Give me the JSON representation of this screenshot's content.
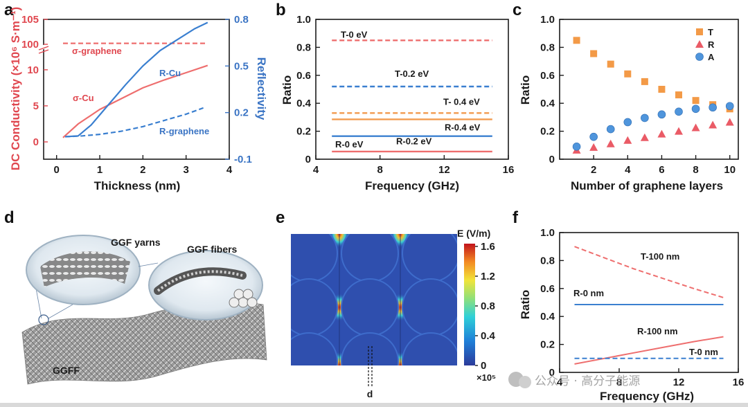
{
  "colors": {
    "red": "#ee6e6e",
    "blue": "#3a7fd0",
    "orange": "#f29a4e",
    "orange_marker": "#f39a47",
    "red_marker": "#ea5b66",
    "blue_marker": "#4f95dc",
    "axis_red": "#e0474f",
    "axis_blue": "#3a74c4"
  },
  "panel_labels": [
    "a",
    "b",
    "c",
    "d",
    "e",
    "f"
  ],
  "chart_data": [
    {
      "panel": "a",
      "type": "line",
      "xlabel": "Thickness (nm)",
      "ylabel_left": "DC Conductivity (×10⁶ S·m⁻¹)",
      "ylabel_right": "Reflectivity",
      "xlim": [
        -0.3,
        4
      ],
      "x_ticks": [
        "0",
        "1",
        "2",
        "3",
        "4"
      ],
      "y_left_ticks": [
        "0",
        "5",
        "10",
        "100",
        "105"
      ],
      "y_right_ticks": [
        "-0.1",
        "0.2",
        "0.5",
        "0.8"
      ],
      "y_right_lim": [
        -0.1,
        0.8
      ],
      "series": [
        {
          "name": "σ-graphene",
          "axis": "left",
          "style": "dashed",
          "color": "#ee6e6e",
          "x": [
            0.15,
            3.5
          ],
          "y_break_value": [
            100.2,
            100.2
          ]
        },
        {
          "name": "σ-Cu",
          "axis": "left",
          "style": "solid",
          "color": "#ee6e6e",
          "x": [
            0.15,
            0.5,
            1.0,
            1.5,
            2.0,
            2.5,
            3.0,
            3.5
          ],
          "y": [
            0.6,
            2.5,
            4.5,
            6.0,
            7.5,
            8.6,
            9.6,
            10.6
          ]
        },
        {
          "name": "R-Cu",
          "axis": "right",
          "style": "solid",
          "color": "#3a7fd0",
          "x": [
            0.2,
            0.5,
            0.8,
            1.2,
            1.6,
            2.0,
            2.4,
            2.8,
            3.2,
            3.5
          ],
          "y": [
            0.045,
            0.05,
            0.12,
            0.25,
            0.38,
            0.5,
            0.6,
            0.67,
            0.74,
            0.78
          ]
        },
        {
          "name": "R-graphene",
          "axis": "right",
          "style": "dashed",
          "color": "#3a7fd0",
          "x": [
            0.2,
            0.6,
            1.0,
            1.5,
            2.0,
            2.5,
            3.0,
            3.4
          ],
          "y": [
            0.045,
            0.05,
            0.06,
            0.08,
            0.11,
            0.15,
            0.19,
            0.23
          ]
        }
      ],
      "annotations": [
        "σ-graphene",
        "σ-Cu",
        "R-Cu",
        "R-graphene"
      ]
    },
    {
      "panel": "b",
      "type": "line",
      "xlabel": "Frequency (GHz)",
      "ylabel": "Ratio",
      "xlim": [
        4,
        16
      ],
      "ylim": [
        0,
        1.0
      ],
      "x_ticks": [
        "4",
        "8",
        "12",
        "16"
      ],
      "y_ticks": [
        "0",
        "0.2",
        "0.4",
        "0.6",
        "0.8",
        "1.0"
      ],
      "series": [
        {
          "label": "T-0 eV",
          "style": "dashed",
          "color": "#ee6e6e",
          "x": [
            5,
            15
          ],
          "y": [
            0.85,
            0.85
          ]
        },
        {
          "label": "T-0.2 eV",
          "style": "dashed",
          "color": "#3a7fd0",
          "x": [
            5,
            15
          ],
          "y": [
            0.52,
            0.52
          ]
        },
        {
          "label": "T- 0.4 eV",
          "style": "dashed",
          "color": "#f29a4e",
          "x": [
            5,
            15
          ],
          "y": [
            0.33,
            0.33
          ]
        },
        {
          "label": "R-0.4 eV",
          "style": "solid",
          "color": "#f29a4e",
          "x": [
            5,
            15
          ],
          "y": [
            0.285,
            0.285
          ]
        },
        {
          "label": "R-0.2 eV",
          "style": "solid",
          "color": "#3a7fd0",
          "x": [
            5,
            15
          ],
          "y": [
            0.165,
            0.165
          ]
        },
        {
          "label": "R-0 eV",
          "style": "solid",
          "color": "#ee6e6e",
          "x": [
            5,
            15
          ],
          "y": [
            0.055,
            0.055
          ]
        }
      ]
    },
    {
      "panel": "c",
      "type": "scatter",
      "xlabel": "Number of graphene layers",
      "ylabel": "Ratio",
      "xlim": [
        0,
        10.5
      ],
      "ylim": [
        0,
        1.0
      ],
      "x_ticks": [
        "2",
        "4",
        "6",
        "8",
        "10"
      ],
      "y_ticks": [
        "0",
        "0.2",
        "0.4",
        "0.6",
        "0.8",
        "1.0"
      ],
      "x": [
        1,
        2,
        3,
        4,
        5,
        6,
        7,
        8,
        9,
        10
      ],
      "series": [
        {
          "name": "T",
          "marker": "square",
          "color": "#f39a47",
          "values": [
            0.85,
            0.755,
            0.68,
            0.61,
            0.555,
            0.5,
            0.46,
            0.42,
            0.39,
            0.36
          ]
        },
        {
          "name": "R",
          "marker": "triangle",
          "color": "#ea5b66",
          "values": [
            0.065,
            0.085,
            0.11,
            0.135,
            0.155,
            0.18,
            0.2,
            0.225,
            0.245,
            0.265
          ]
        },
        {
          "name": "A",
          "marker": "circle",
          "color": "#4f95dc",
          "values": [
            0.09,
            0.16,
            0.215,
            0.265,
            0.295,
            0.32,
            0.34,
            0.36,
            0.37,
            0.38
          ]
        }
      ],
      "legend": "top-right"
    },
    {
      "panel": "e",
      "type": "heatmap",
      "colorbar_title": "E (V/m)",
      "colorbar_ticks": [
        "1.6",
        "1.2",
        "0.8",
        "0.4",
        "0"
      ],
      "colorbar_multiplier": "×10⁵",
      "marker_label": "d"
    },
    {
      "panel": "f",
      "type": "line",
      "xlabel": "Frequency (GHz)",
      "ylabel": "Ratio",
      "xlim": [
        4,
        16
      ],
      "ylim": [
        0,
        1.0
      ],
      "x_ticks": [
        "4",
        "8",
        "12",
        "16"
      ],
      "y_ticks": [
        "0",
        "0.2",
        "0.4",
        "0.6",
        "0.8",
        "1.0"
      ],
      "series": [
        {
          "label": "T-100 nm",
          "style": "dashed",
          "color": "#ee6e6e",
          "x": [
            5,
            7,
            9,
            11,
            13,
            15
          ],
          "y": [
            0.9,
            0.82,
            0.74,
            0.67,
            0.6,
            0.535
          ]
        },
        {
          "label": "R-0 nm",
          "style": "solid",
          "color": "#3a7fd0",
          "x": [
            5,
            15
          ],
          "y": [
            0.485,
            0.485
          ]
        },
        {
          "label": "R-100 nm",
          "style": "solid",
          "color": "#ee6e6e",
          "x": [
            5,
            7,
            9,
            11,
            13,
            15
          ],
          "y": [
            0.06,
            0.1,
            0.14,
            0.18,
            0.22,
            0.255
          ]
        },
        {
          "label": "T-0 nm",
          "style": "dashed",
          "color": "#3a7fd0",
          "x": [
            5,
            15
          ],
          "y": [
            0.1,
            0.1
          ]
        }
      ]
    }
  ],
  "illustration_d": {
    "labels": [
      "GGF yarns",
      "GGF fibers",
      "GGFF"
    ]
  },
  "watermark": "公众号 · 高分子能源"
}
